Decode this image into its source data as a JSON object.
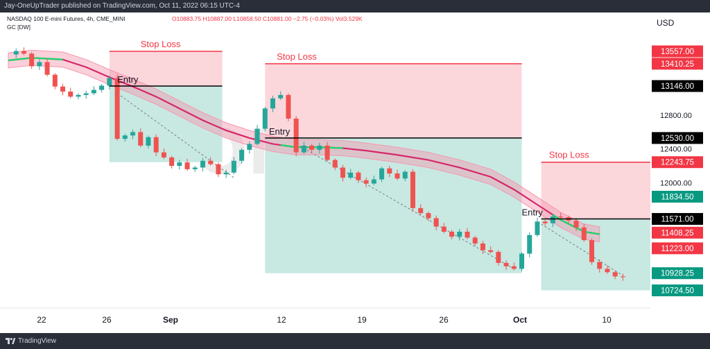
{
  "header": {
    "publisher_line": "Jay-OneUpTrader published on TradingView.com, Oct 11, 2022 06:15 UTC-4"
  },
  "legend": {
    "symbol_line": "NASDAQ 100 E-mini Futures, 4h, CME_MINI",
    "ohlc_text": "O10883.75 H10887.00 L10858.50 C10881.00 −2.75 (−0.03%) Vol3.529K",
    "indicator": "GC [DW]"
  },
  "footer": {
    "brand": "TradingView"
  },
  "watermark": {
    "line1": "ONE UP",
    "line2": "Trader"
  },
  "colors": {
    "up": "#26a69a",
    "down": "#ef5350",
    "stop_zone": "#fbd7dc",
    "target_zone": "#c8e8e2",
    "stop_line": "#f23645",
    "entry_line": "#000000",
    "band_upper": "#f596ae",
    "band_lower": "#b3ecc4",
    "midline_down": "#d5286a",
    "midline_up": "#22d36b"
  },
  "chart_data": {
    "type": "candlestick",
    "currency": "USD",
    "x_tick_labels": [
      "22",
      "26",
      "Sep",
      "12",
      "19",
      "26",
      "Oct",
      "10"
    ],
    "price_axis_labels": [
      "12800.00",
      "12400.00",
      "12000.00"
    ],
    "price_tags": [
      {
        "value": 13557.0,
        "text": "13557.00",
        "style": "red"
      },
      {
        "value": 13410.25,
        "text": "13410.25",
        "style": "red"
      },
      {
        "value": 13146.0,
        "text": "13146.00",
        "style": "black"
      },
      {
        "value": 12530.0,
        "text": "12530.00",
        "style": "black"
      },
      {
        "value": 12243.75,
        "text": "12243.75",
        "style": "red"
      },
      {
        "value": 11834.5,
        "text": "11834.50",
        "style": "green"
      },
      {
        "value": 11571.0,
        "text": "11571.00",
        "style": "black"
      },
      {
        "value": 11408.25,
        "text": "11408.25",
        "style": "red"
      },
      {
        "value": 11223.0,
        "text": "11223.00",
        "style": "red"
      },
      {
        "value": 10928.25,
        "text": "10928.25",
        "style": "green"
      },
      {
        "value": 10724.5,
        "text": "10724.50",
        "style": "green"
      }
    ],
    "trades": [
      {
        "entry_label": "Entry",
        "stop_label": "Stop Loss",
        "entry": 13146.0,
        "stop": 13557.0,
        "target": 12243.75,
        "x_start": 13,
        "x_end": 27.5,
        "entry_text_x": 14.0,
        "stop_text_x": 17.0
      },
      {
        "entry_label": "Entry",
        "stop_label": "Stop Loss",
        "entry": 12530.0,
        "stop": 13410.25,
        "target": 10928.25,
        "x_start": 33,
        "x_end": 66,
        "entry_text_x": 33.5,
        "stop_text_x": 34.5
      },
      {
        "entry_label": "Entry",
        "stop_label": "Stop Loss",
        "entry": 11571.0,
        "stop": 12243.75,
        "target": 10724.5,
        "x_start": 68.5,
        "x_end": 85,
        "entry_text_x": 66.0,
        "stop_text_x": 69.5
      }
    ],
    "band_mid": [
      [
        0,
        13450
      ],
      [
        3,
        13480
      ],
      [
        7,
        13460
      ],
      [
        10,
        13370
      ],
      [
        13,
        13250
      ],
      [
        16,
        13140
      ],
      [
        19,
        13020
      ],
      [
        22,
        12880
      ],
      [
        25,
        12740
      ],
      [
        28,
        12620
      ],
      [
        31,
        12530
      ],
      [
        34,
        12460
      ],
      [
        37,
        12420
      ],
      [
        40,
        12420
      ],
      [
        43,
        12410
      ],
      [
        46,
        12380
      ],
      [
        50,
        12330
      ],
      [
        54,
        12270
      ],
      [
        58,
        12180
      ],
      [
        62,
        12070
      ],
      [
        65,
        11920
      ],
      [
        68,
        11740
      ],
      [
        71,
        11560
      ],
      [
        74,
        11420
      ],
      [
        76,
        11390
      ]
    ],
    "band_half_width": 90,
    "midline_up_segments": [
      [
        0,
        7
      ],
      [
        35,
        43
      ],
      [
        70,
        76
      ]
    ],
    "candles_path": [
      [
        0,
        13520
      ],
      [
        1,
        13560
      ],
      [
        2,
        13530
      ],
      [
        3,
        13380
      ],
      [
        4,
        13430
      ],
      [
        5,
        13280
      ],
      [
        6,
        13140
      ],
      [
        7,
        13080
      ],
      [
        8,
        13020
      ],
      [
        9,
        13040
      ],
      [
        10,
        13060
      ],
      [
        11,
        13100
      ],
      [
        12,
        13150
      ],
      [
        13,
        13240
      ],
      [
        14,
        12520
      ],
      [
        15,
        12560
      ],
      [
        16,
        12600
      ],
      [
        17,
        12440
      ],
      [
        18,
        12540
      ],
      [
        19,
        12360
      ],
      [
        20,
        12300
      ],
      [
        21,
        12200
      ],
      [
        22,
        12240
      ],
      [
        23,
        12160
      ],
      [
        24,
        12180
      ],
      [
        25,
        12260
      ],
      [
        26,
        12220
      ],
      [
        27,
        12100
      ],
      [
        28,
        12120
      ],
      [
        29,
        12260
      ],
      [
        30,
        12390
      ],
      [
        31,
        12460
      ],
      [
        32,
        12640
      ],
      [
        33,
        12880
      ],
      [
        34,
        13000
      ],
      [
        35,
        13040
      ],
      [
        36,
        12760
      ],
      [
        37,
        12360
      ],
      [
        38,
        12440
      ],
      [
        39,
        12390
      ],
      [
        40,
        12440
      ],
      [
        41,
        12270
      ],
      [
        42,
        12180
      ],
      [
        43,
        12060
      ],
      [
        44,
        12120
      ],
      [
        45,
        12030
      ],
      [
        46,
        11990
      ],
      [
        47,
        12040
      ],
      [
        48,
        12170
      ],
      [
        49,
        12110
      ],
      [
        50,
        12050
      ],
      [
        51,
        12130
      ],
      [
        52,
        11700
      ],
      [
        53,
        11640
      ],
      [
        54,
        11580
      ],
      [
        55,
        11480
      ],
      [
        56,
        11420
      ],
      [
        57,
        11360
      ],
      [
        58,
        11420
      ],
      [
        59,
        11350
      ],
      [
        60,
        11280
      ],
      [
        61,
        11200
      ],
      [
        62,
        11180
      ],
      [
        63,
        11050
      ],
      [
        64,
        11010
      ],
      [
        65,
        10980
      ],
      [
        66,
        11160
      ],
      [
        67,
        11380
      ],
      [
        68,
        11540
      ],
      [
        69,
        11520
      ],
      [
        70,
        11600
      ],
      [
        71,
        11590
      ],
      [
        72,
        11550
      ],
      [
        73,
        11470
      ],
      [
        74,
        11320
      ],
      [
        75,
        11060
      ],
      [
        76,
        10980
      ],
      [
        77,
        10940
      ],
      [
        78,
        10890
      ],
      [
        79,
        10881
      ]
    ],
    "trend_lines": [
      [
        [
          14,
          13060
        ],
        [
          29,
          12060
        ]
      ],
      [
        [
          37,
          12460
        ],
        [
          65,
          10980
        ]
      ],
      [
        [
          68.5,
          11510
        ],
        [
          79,
          10900
        ]
      ]
    ]
  }
}
